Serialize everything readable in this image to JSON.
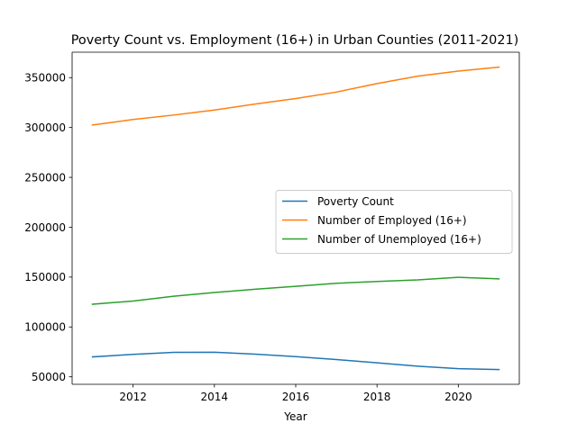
{
  "chart_data": {
    "type": "line",
    "title": "Poverty Count vs. Employment (16+) in Urban Counties (2011-2021)",
    "xlabel": "Year",
    "ylabel": "",
    "x": [
      2011,
      2012,
      2013,
      2014,
      2015,
      2016,
      2017,
      2018,
      2019,
      2020,
      2021
    ],
    "xlim": [
      2010.5,
      2021.5
    ],
    "ylim": [
      42500,
      375500
    ],
    "xticks": [
      2012,
      2014,
      2016,
      2018,
      2020
    ],
    "yticks": [
      50000,
      100000,
      150000,
      200000,
      250000,
      300000,
      350000
    ],
    "xtick_labels": [
      "2012",
      "2014",
      "2016",
      "2018",
      "2020"
    ],
    "ytick_labels": [
      "50000",
      "100000",
      "150000",
      "200000",
      "250000",
      "300000",
      "350000"
    ],
    "grid": false,
    "legend_position": "center-right",
    "series": [
      {
        "name": "Poverty Count",
        "color": "#1f77b4",
        "values": [
          70000,
          72500,
          74500,
          74700,
          72700,
          70200,
          67300,
          64000,
          60700,
          58200,
          57300
        ]
      },
      {
        "name": "Number of Employed (16+)",
        "color": "#ff7f0e",
        "values": [
          302500,
          308000,
          312500,
          317500,
          323500,
          329000,
          335500,
          344000,
          351500,
          356500,
          360500
        ]
      },
      {
        "name": "Number of Unemployed (16+)",
        "color": "#2ca02c",
        "values": [
          122800,
          126000,
          130800,
          134500,
          137800,
          140800,
          143800,
          145600,
          147200,
          149800,
          148200
        ]
      }
    ]
  }
}
